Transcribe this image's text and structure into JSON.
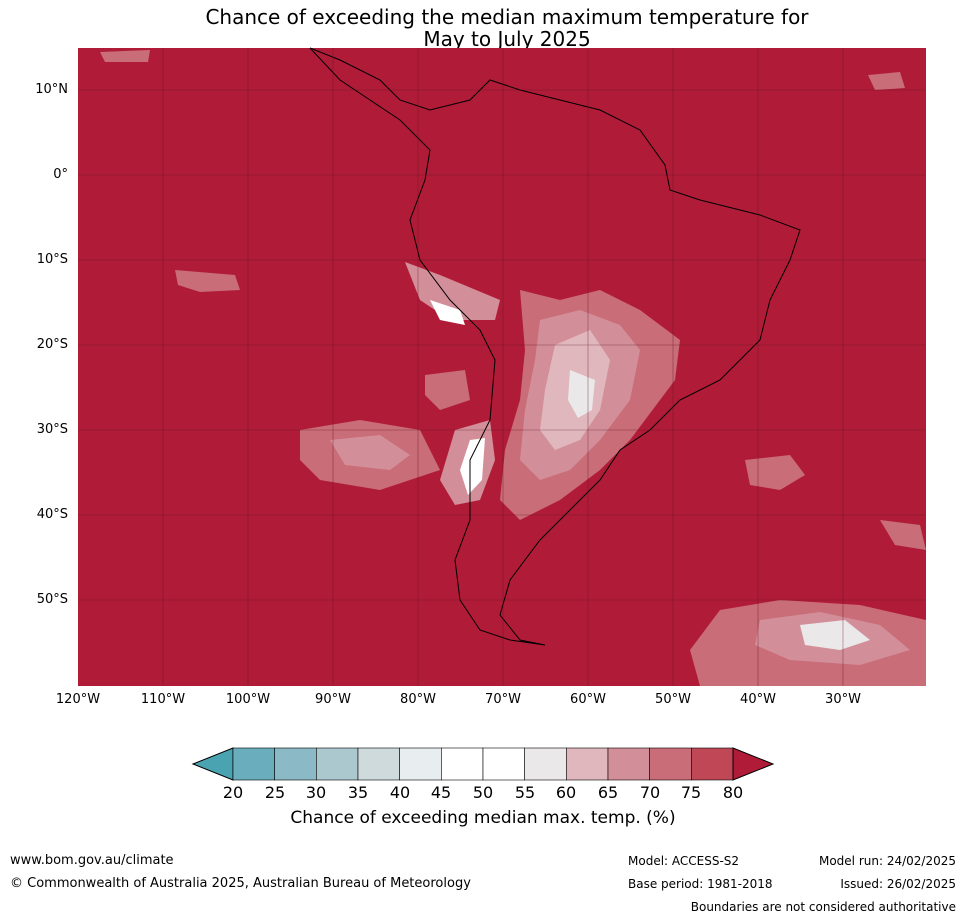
{
  "title_line1": "Chance of exceeding the median maximum temperature for",
  "title_line2": "May to July 2025",
  "lat_labels": [
    "10°N",
    "0°",
    "10°S",
    "20°S",
    "30°S",
    "40°S",
    "50°S"
  ],
  "lon_labels": [
    "120°W",
    "110°W",
    "100°W",
    "90°W",
    "80°W",
    "70°W",
    "60°W",
    "50°W",
    "40°W",
    "30°W"
  ],
  "colorbar": {
    "ticks": [
      "20",
      "25",
      "30",
      "35",
      "40",
      "45",
      "50",
      "55",
      "60",
      "65",
      "70",
      "75",
      "80"
    ],
    "colors": [
      "#4aa3b0",
      "#6aaebd",
      "#8cb9c6",
      "#aac8ce",
      "#cfdadd",
      "#e8eef0",
      "#ffffff",
      "#ffffff",
      "#ebe8e9",
      "#e0b7bd",
      "#d38f99",
      "#c96d78",
      "#bf4756",
      "#b01c38"
    ],
    "caption": "Chance of exceeding median max. temp. (%)"
  },
  "map_colors": {
    "background": "#b01c38",
    "p75": "#bf4756",
    "p70": "#c96d78",
    "p65": "#d38f99",
    "p60": "#e0b7bd",
    "p55": "#ebe8e9",
    "white": "#ffffff",
    "coast": "#000000",
    "border": "#808080",
    "grid": "#5a1220"
  },
  "footer": {
    "website": "www.bom.gov.au/climate",
    "copyright": "© Commonwealth of Australia 2025, Australian Bureau of Meteorology",
    "model": "Model: ACCESS-S2",
    "base_period": "Base period: 1981-2018",
    "model_run": "Model run: 24/02/2025",
    "issued": "Issued: 26/02/2025",
    "disclaimer": "Boundaries are not considered authoritative"
  }
}
